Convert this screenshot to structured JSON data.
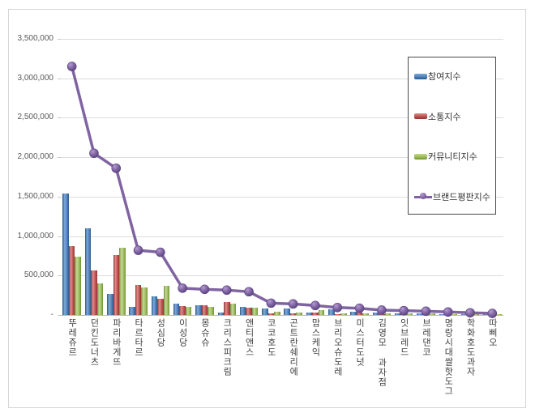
{
  "chart_data": {
    "type": "bar",
    "note": "combo chart: three bar series + one line series",
    "categories": [
      "뚜레쥬르",
      "던킨도너츠",
      "파리바게뜨",
      "타르타르",
      "성심당",
      "이성당",
      "몽슈슈",
      "크리스피크림",
      "앤티앤스",
      "코코호도",
      "곤트란쉐리에",
      "맘스케익",
      "브리오슈도레",
      "미스터도넛",
      "김영모 과자점",
      "잇브레드",
      "브레댄코",
      "명랑시대쌀핫도그",
      "학화호도과자",
      "따삐오"
    ],
    "series": [
      {
        "name": "참여지수",
        "type": "bar",
        "color": "#4F81BD",
        "values": [
          1540000,
          1100000,
          265000,
          100000,
          235000,
          140000,
          125000,
          30000,
          105000,
          85000,
          85000,
          30000,
          70000,
          40000,
          30000,
          20000,
          18000,
          14000,
          12000,
          8000
        ]
      },
      {
        "name": "소통지수",
        "type": "bar",
        "color": "#C0504D",
        "values": [
          870000,
          565000,
          760000,
          375000,
          205000,
          115000,
          120000,
          165000,
          90000,
          25000,
          25000,
          30000,
          15000,
          30000,
          10000,
          12000,
          10000,
          10000,
          6000,
          5000
        ]
      },
      {
        "name": "커뮤니티지수",
        "type": "bar",
        "color": "#9BBB59",
        "values": [
          735000,
          400000,
          850000,
          345000,
          370000,
          100000,
          105000,
          140000,
          95000,
          40000,
          30000,
          60000,
          25000,
          20000,
          25000,
          18000,
          16000,
          12000,
          10000,
          7000
        ]
      },
      {
        "name": "브랜드평판지수",
        "type": "line",
        "color": "#8064A2",
        "values": [
          3150000,
          2050000,
          1860000,
          820000,
          795000,
          340000,
          325000,
          315000,
          295000,
          150000,
          140000,
          120000,
          95000,
          85000,
          62000,
          55000,
          48000,
          38000,
          28000,
          20000
        ]
      }
    ],
    "title": "",
    "xlabel": "",
    "ylabel": "",
    "ylim": [
      0,
      3500000
    ],
    "y_step": 500000,
    "y_ticks": [
      "3,500,000",
      "3,000,000",
      "2,500,000",
      "2,000,000",
      "1,500,000",
      "1,000,000",
      "500,000",
      "-"
    ],
    "grid": true,
    "legend_position": "inside-right"
  },
  "colors": {
    "gridline": "#dcdcdc",
    "baseline": "#b9b9b9",
    "frame_border": "#d5d5d5",
    "legend_border": "#4a4a4a",
    "axis_text": "#595959",
    "category_text": "#404040"
  }
}
